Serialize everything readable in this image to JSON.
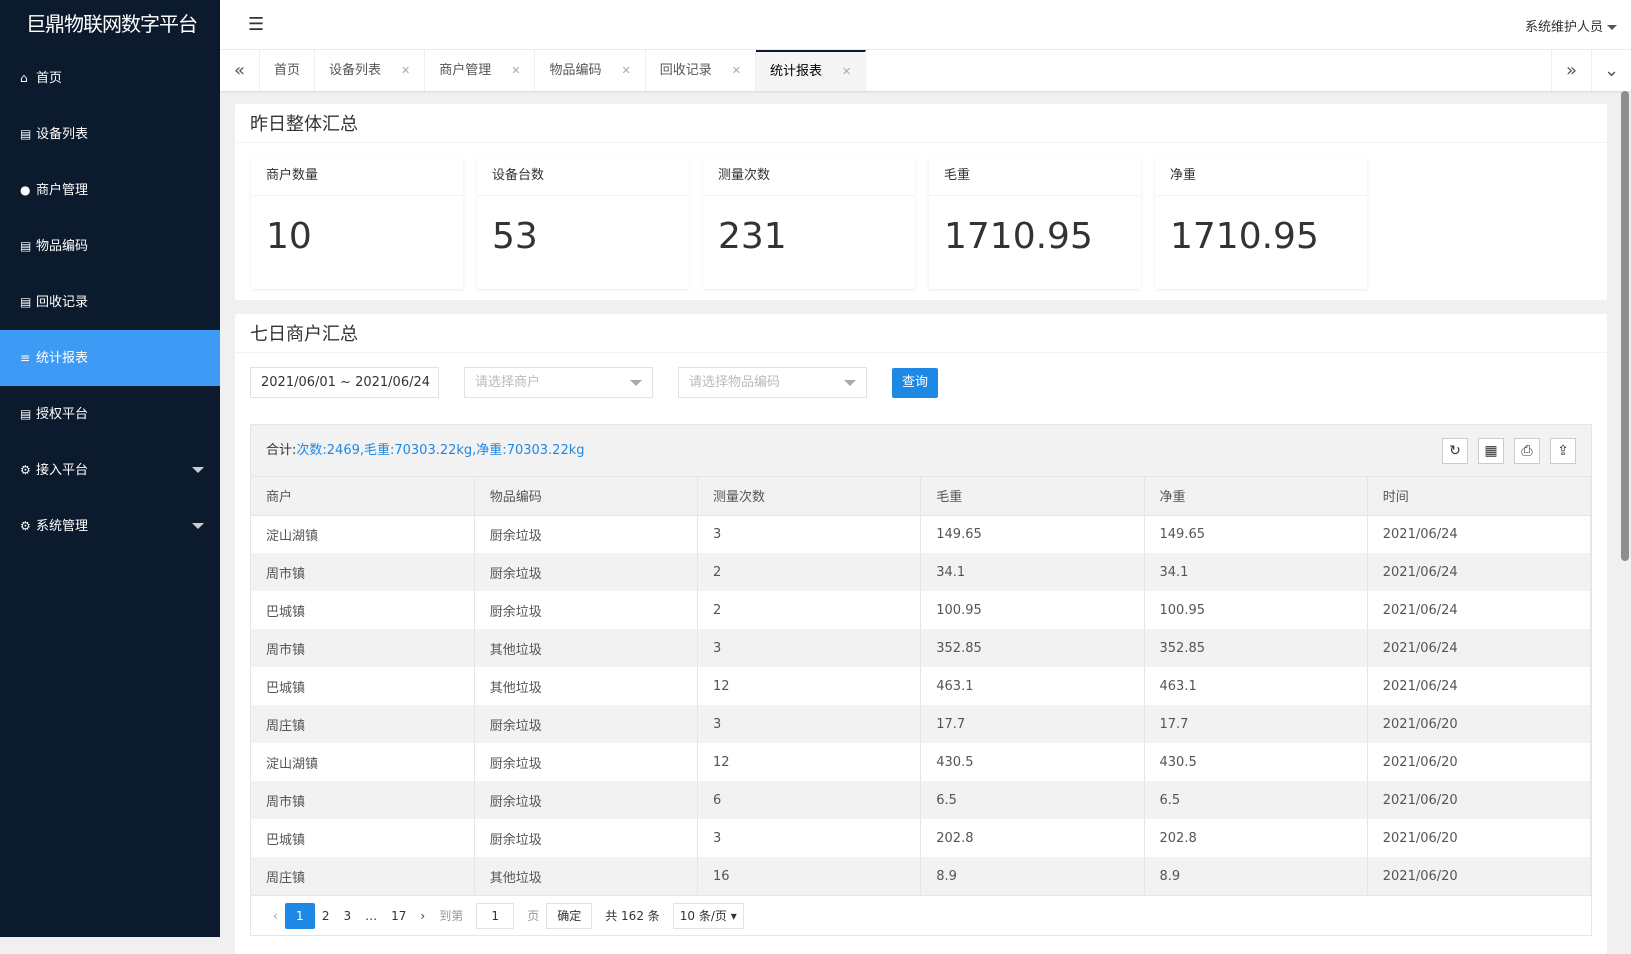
{
  "app": {
    "title": "巨鼎物联网数字平台",
    "user": "系统维护人员"
  },
  "sidebar": {
    "items": [
      {
        "label": "首页",
        "icon": "home-icon"
      },
      {
        "label": "设备列表",
        "icon": "list-icon"
      },
      {
        "label": "商户管理",
        "icon": "user-icon"
      },
      {
        "label": "物品编码",
        "icon": "list-icon"
      },
      {
        "label": "回收记录",
        "icon": "list-icon"
      },
      {
        "label": "统计报表",
        "icon": "menu-icon",
        "active": true
      },
      {
        "label": "授权平台",
        "icon": "list-icon"
      },
      {
        "label": "接入平台",
        "icon": "gear-icon",
        "expandable": true
      },
      {
        "label": "系统管理",
        "icon": "gear-icon",
        "expandable": true
      }
    ]
  },
  "tabs": [
    {
      "label": "首页"
    },
    {
      "label": "设备列表"
    },
    {
      "label": "商户管理"
    },
    {
      "label": "物品编码"
    },
    {
      "label": "回收记录"
    },
    {
      "label": "统计报表",
      "active": true
    }
  ],
  "summary": {
    "title": "昨日整体汇总",
    "cards": [
      {
        "label": "商户数量",
        "value": "10"
      },
      {
        "label": "设备台数",
        "value": "53"
      },
      {
        "label": "测量次数",
        "value": "231"
      },
      {
        "label": "毛重",
        "value": "1710.95"
      },
      {
        "label": "净重",
        "value": "1710.95"
      }
    ]
  },
  "weekly": {
    "title": "七日商户汇总",
    "date_range": "2021/06/01 ~ 2021/06/24",
    "merchant_placeholder": "请选择商户",
    "item_placeholder": "请选择物品编码",
    "query": "查询",
    "total_label": "合计:",
    "total_value": "次数:2469,毛重:70303.22kg,净重:70303.22kg",
    "columns": [
      "商户",
      "物品编码",
      "测量次数",
      "毛重",
      "净重",
      "时间"
    ],
    "rows": [
      [
        "淀山湖镇",
        "厨余垃圾",
        "3",
        "149.65",
        "149.65",
        "2021/06/24"
      ],
      [
        "周市镇",
        "厨余垃圾",
        "2",
        "34.1",
        "34.1",
        "2021/06/24"
      ],
      [
        "巴城镇",
        "厨余垃圾",
        "2",
        "100.95",
        "100.95",
        "2021/06/24"
      ],
      [
        "周市镇",
        "其他垃圾",
        "3",
        "352.85",
        "352.85",
        "2021/06/24"
      ],
      [
        "巴城镇",
        "其他垃圾",
        "12",
        "463.1",
        "463.1",
        "2021/06/24"
      ],
      [
        "周庄镇",
        "厨余垃圾",
        "3",
        "17.7",
        "17.7",
        "2021/06/20"
      ],
      [
        "淀山湖镇",
        "厨余垃圾",
        "12",
        "430.5",
        "430.5",
        "2021/06/20"
      ],
      [
        "周市镇",
        "厨余垃圾",
        "6",
        "6.5",
        "6.5",
        "2021/06/20"
      ],
      [
        "巴城镇",
        "厨余垃圾",
        "3",
        "202.8",
        "202.8",
        "2021/06/20"
      ],
      [
        "周庄镇",
        "其他垃圾",
        "16",
        "8.9",
        "8.9",
        "2021/06/20"
      ]
    ],
    "pager": {
      "pages": [
        "1",
        "2",
        "3",
        "17"
      ],
      "ellipsis": "…",
      "current": "1",
      "goto_label": "到第",
      "goto_value": "1",
      "page_unit": "页",
      "confirm": "确定",
      "total": "共 162 条",
      "page_size": "10 条/页"
    }
  },
  "colors": {
    "sidebar": "#0c1a2e",
    "active": "#3e9bf5",
    "primary": "#1e88e5"
  }
}
